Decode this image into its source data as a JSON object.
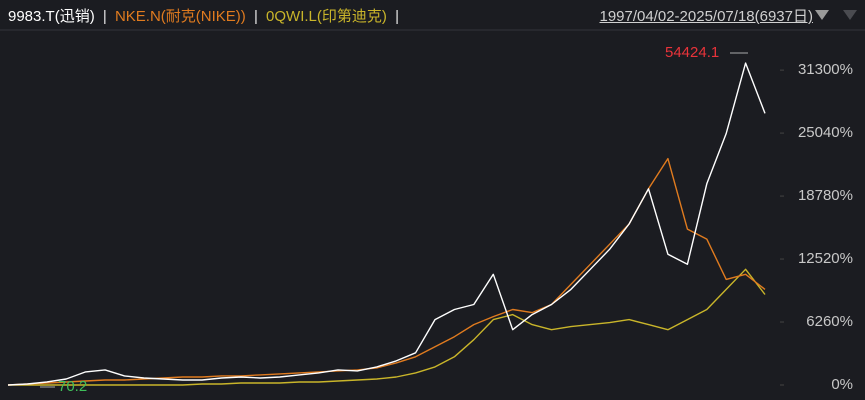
{
  "chart_data": {
    "type": "line",
    "header": {
      "separator": "|",
      "range": "1997/04/02-2025/07/18(6937日)"
    },
    "categories": [
      null,
      null,
      null,
      null,
      null,
      null,
      null,
      null,
      null,
      null,
      null,
      null,
      null,
      null,
      null,
      null,
      null,
      null,
      null,
      null,
      null,
      null,
      null,
      null,
      null,
      null,
      null,
      null,
      null,
      null,
      null,
      null,
      null,
      null,
      null,
      null,
      null,
      null,
      null,
      null
    ],
    "series": [
      {
        "name": "9983.T(迅销)",
        "color": "#ffffff",
        "values": [
          0,
          100,
          300,
          600,
          1300,
          1500,
          900,
          700,
          600,
          500,
          500,
          700,
          800,
          700,
          800,
          1000,
          1200,
          1500,
          1400,
          1800,
          2400,
          3200,
          6500,
          7500,
          8000,
          11000,
          5500,
          7000,
          8000,
          9500,
          11500,
          13500,
          16000,
          19500,
          13000,
          12000,
          20000,
          25000,
          32000,
          27000
        ]
      },
      {
        "name": "NKE.N(耐克(NIKE))",
        "color": "#e07b1f",
        "values": [
          0,
          100,
          200,
          300,
          400,
          500,
          500,
          600,
          700,
          800,
          800,
          900,
          900,
          1000,
          1100,
          1200,
          1300,
          1400,
          1500,
          1700,
          2200,
          2800,
          3800,
          4800,
          6000,
          6800,
          7500,
          7200,
          8000,
          10000,
          12000,
          14000,
          16000,
          19500,
          22500,
          15500,
          14500,
          10500,
          11000,
          9500
        ]
      },
      {
        "name": "0QWI.L(印第迪克)",
        "color": "#c9b52a",
        "values": [
          0,
          0,
          0,
          0,
          0,
          0,
          0,
          0,
          0,
          0,
          100,
          100,
          200,
          200,
          200,
          300,
          300,
          400,
          500,
          600,
          800,
          1200,
          1800,
          2800,
          4500,
          6500,
          7000,
          6000,
          5500,
          5800,
          6000,
          6200,
          6500,
          6000,
          5500,
          6500,
          7500,
          9500,
          11500,
          9000
        ]
      }
    ],
    "ylim": [
      0,
      33000
    ],
    "yticks": [
      {
        "value": 0,
        "label": "0%"
      },
      {
        "value": 6260,
        "label": "6260%"
      },
      {
        "value": 12520,
        "label": "12520%"
      },
      {
        "value": 18780,
        "label": "18780%"
      },
      {
        "value": 25040,
        "label": "25040%"
      },
      {
        "value": 31300,
        "label": "31300%"
      }
    ],
    "annotations": {
      "max": 54424.1,
      "min": 70.2
    }
  }
}
